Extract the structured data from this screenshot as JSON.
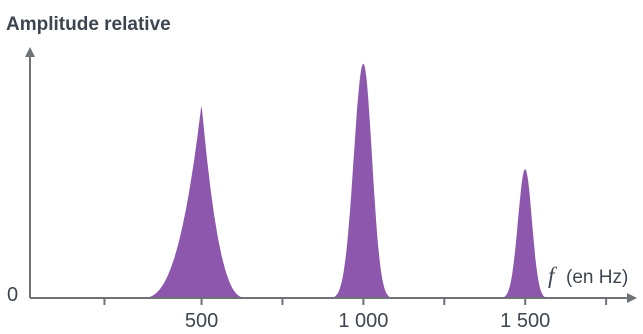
{
  "chart_data": {
    "type": "area",
    "title": "",
    "ylabel": "Amplitude relative",
    "xlabel_variable": "f",
    "xlabel_unit": "(en Hz)",
    "y_origin_label": "0",
    "xlim": [
      -30,
      1830
    ],
    "ylim": [
      0,
      1.05
    ],
    "grid": false,
    "x_ticks": [
      200,
      500,
      750,
      1000,
      1250,
      1500,
      1750
    ],
    "x_tick_labels": [
      {
        "value": 500,
        "label": "500"
      },
      {
        "value": 1000,
        "label": "1 000"
      },
      {
        "value": 1500,
        "label": "1 500"
      }
    ],
    "color": "#8c57ad",
    "series": [
      {
        "center": 500,
        "peak": 0.83,
        "width_left": 185,
        "width_right": 140,
        "shape": "cusp"
      },
      {
        "center": 1000,
        "peak": 1.0,
        "width_left": 100,
        "width_right": 90,
        "shape": "bell"
      },
      {
        "center": 1500,
        "peak": 0.55,
        "width_left": 75,
        "width_right": 70,
        "shape": "bell"
      }
    ]
  }
}
